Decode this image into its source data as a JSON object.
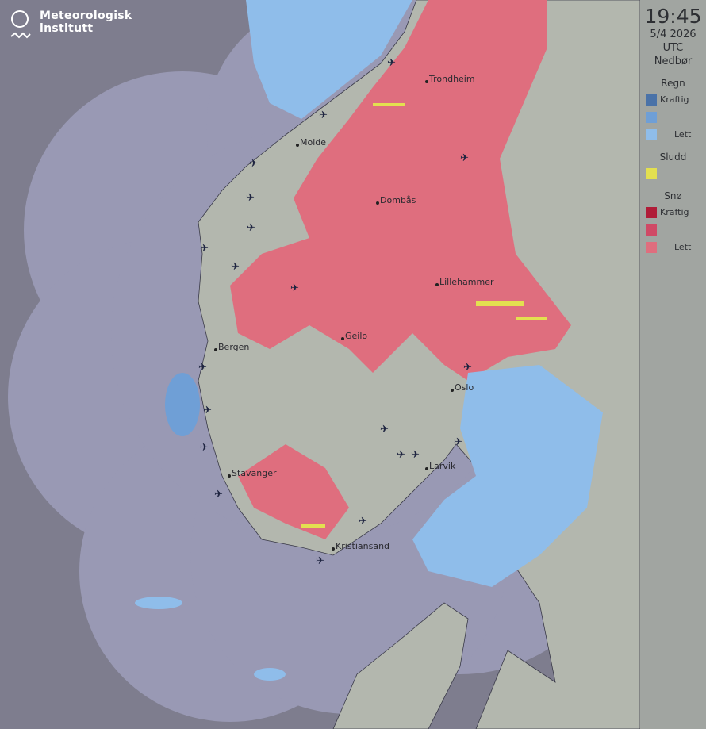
{
  "logo": {
    "line1": "Meteorologisk",
    "line2": "institutt"
  },
  "legend": {
    "time": "19:45",
    "date": "5/4 2026",
    "tz": "UTC",
    "title": "Nedbør",
    "rain": {
      "label": "Regn",
      "strong": "Kraftig",
      "light": "Lett",
      "colors": [
        "#4a72a8",
        "#6f9fd6",
        "#8fbdea"
      ]
    },
    "sleet": {
      "label": "Sludd",
      "color": "#e3e050"
    },
    "snow": {
      "label": "Snø",
      "strong": "Kraftig",
      "light": "Lett",
      "colors": [
        "#b01c38",
        "#d04a66",
        "#df6e7e"
      ]
    }
  },
  "cities": [
    {
      "name": "Trondheim",
      "lon": 10.4,
      "lat": 63.43
    },
    {
      "name": "Molde",
      "lon": 7.16,
      "lat": 62.74
    },
    {
      "name": "Dombås",
      "lon": 9.12,
      "lat": 62.07
    },
    {
      "name": "Lillehammer",
      "lon": 10.47,
      "lat": 61.12
    },
    {
      "name": "Geilo",
      "lon": 8.21,
      "lat": 60.53
    },
    {
      "name": "Bergen",
      "lon": 5.32,
      "lat": 60.39
    },
    {
      "name": "Oslo",
      "lon": 10.75,
      "lat": 59.91
    },
    {
      "name": "Larvik",
      "lon": 10.03,
      "lat": 59.05
    },
    {
      "name": "Stavanger",
      "lon": 5.73,
      "lat": 58.97
    },
    {
      "name": "Kristiansand",
      "lon": 7.99,
      "lat": 58.15
    }
  ],
  "airport_icon": "airplane-icon"
}
